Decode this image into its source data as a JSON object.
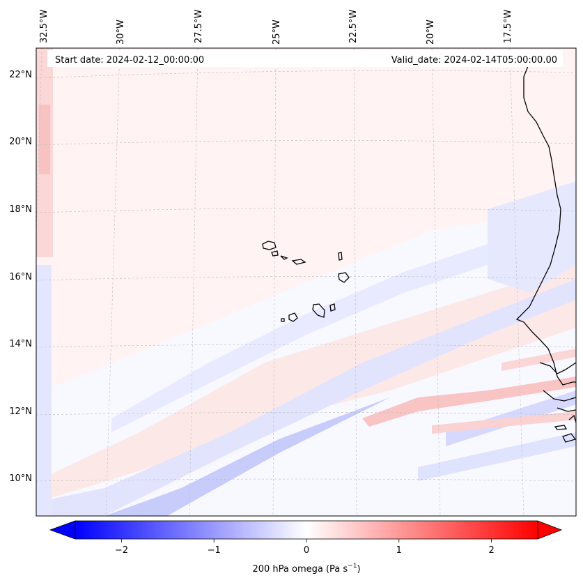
{
  "map": {
    "start_date": "Start date: 2024-02-12_00:00:00",
    "valid_date": "Valid_date: 2024-02-14T05:00:00.00",
    "lon_labels": [
      "32.5°W",
      "30°W",
      "27.5°W",
      "25°W",
      "22.5°W",
      "20°W",
      "17.5°W"
    ],
    "lat_labels": [
      "22°N",
      "20°N",
      "18°N",
      "16°N",
      "14°N",
      "12°N",
      "10°N"
    ],
    "colormap": "bwr",
    "coastline_color": "#000000",
    "gridline_style": "dashed-gray"
  },
  "colorbar": {
    "label": "200 hPa omega (Pa s",
    "label_sup": "−1",
    "label_close": ")",
    "ticks": [
      "−2",
      "−1",
      "0",
      "1",
      "2"
    ],
    "tick_values": [
      -2,
      -1,
      0,
      1,
      2
    ],
    "range": [
      -2.5,
      2.5
    ],
    "extend": "both",
    "low_color": "#0000ff",
    "mid_color": "#ffffff",
    "high_color": "#ff0000"
  }
}
